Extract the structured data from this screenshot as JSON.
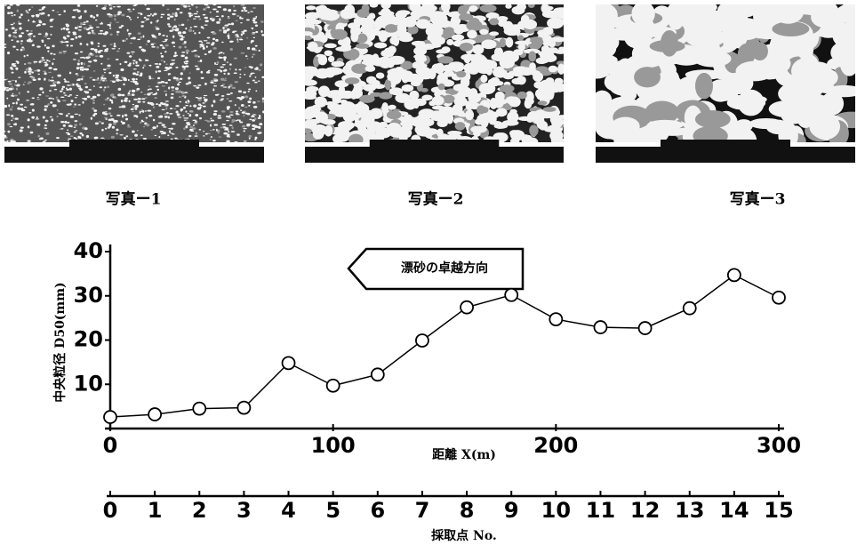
{
  "photo_captions": [
    "写真ー1",
    "写真ー2",
    "写真ー3"
  ],
  "chart_data": {
    "type": "line",
    "annotation": "漂砂の卓越方向",
    "ylabel": "中央粒径 D50(mm)",
    "xlabel": "距離 X(m)",
    "x2label": "採取点 No.",
    "x": [
      0,
      20,
      40,
      60,
      80,
      100,
      120,
      140,
      160,
      180,
      200,
      220,
      240,
      260,
      280,
      300
    ],
    "values": [
      2.6,
      3.2,
      4.5,
      4.7,
      14.8,
      9.7,
      12.2,
      19.9,
      27.4,
      30.2,
      24.7,
      22.9,
      22.7,
      27.2,
      34.7,
      29.6
    ],
    "color": "#000000",
    "xlim": [
      0,
      300
    ],
    "xticks": [
      0,
      100,
      200,
      300
    ],
    "ylim": [
      0,
      40
    ],
    "yticks": [
      10,
      20,
      30,
      40
    ],
    "x2lim": [
      0,
      15
    ],
    "x2ticks": [
      0,
      1,
      2,
      3,
      4,
      5,
      6,
      7,
      8,
      9,
      10,
      11,
      12,
      13,
      14,
      15
    ]
  }
}
